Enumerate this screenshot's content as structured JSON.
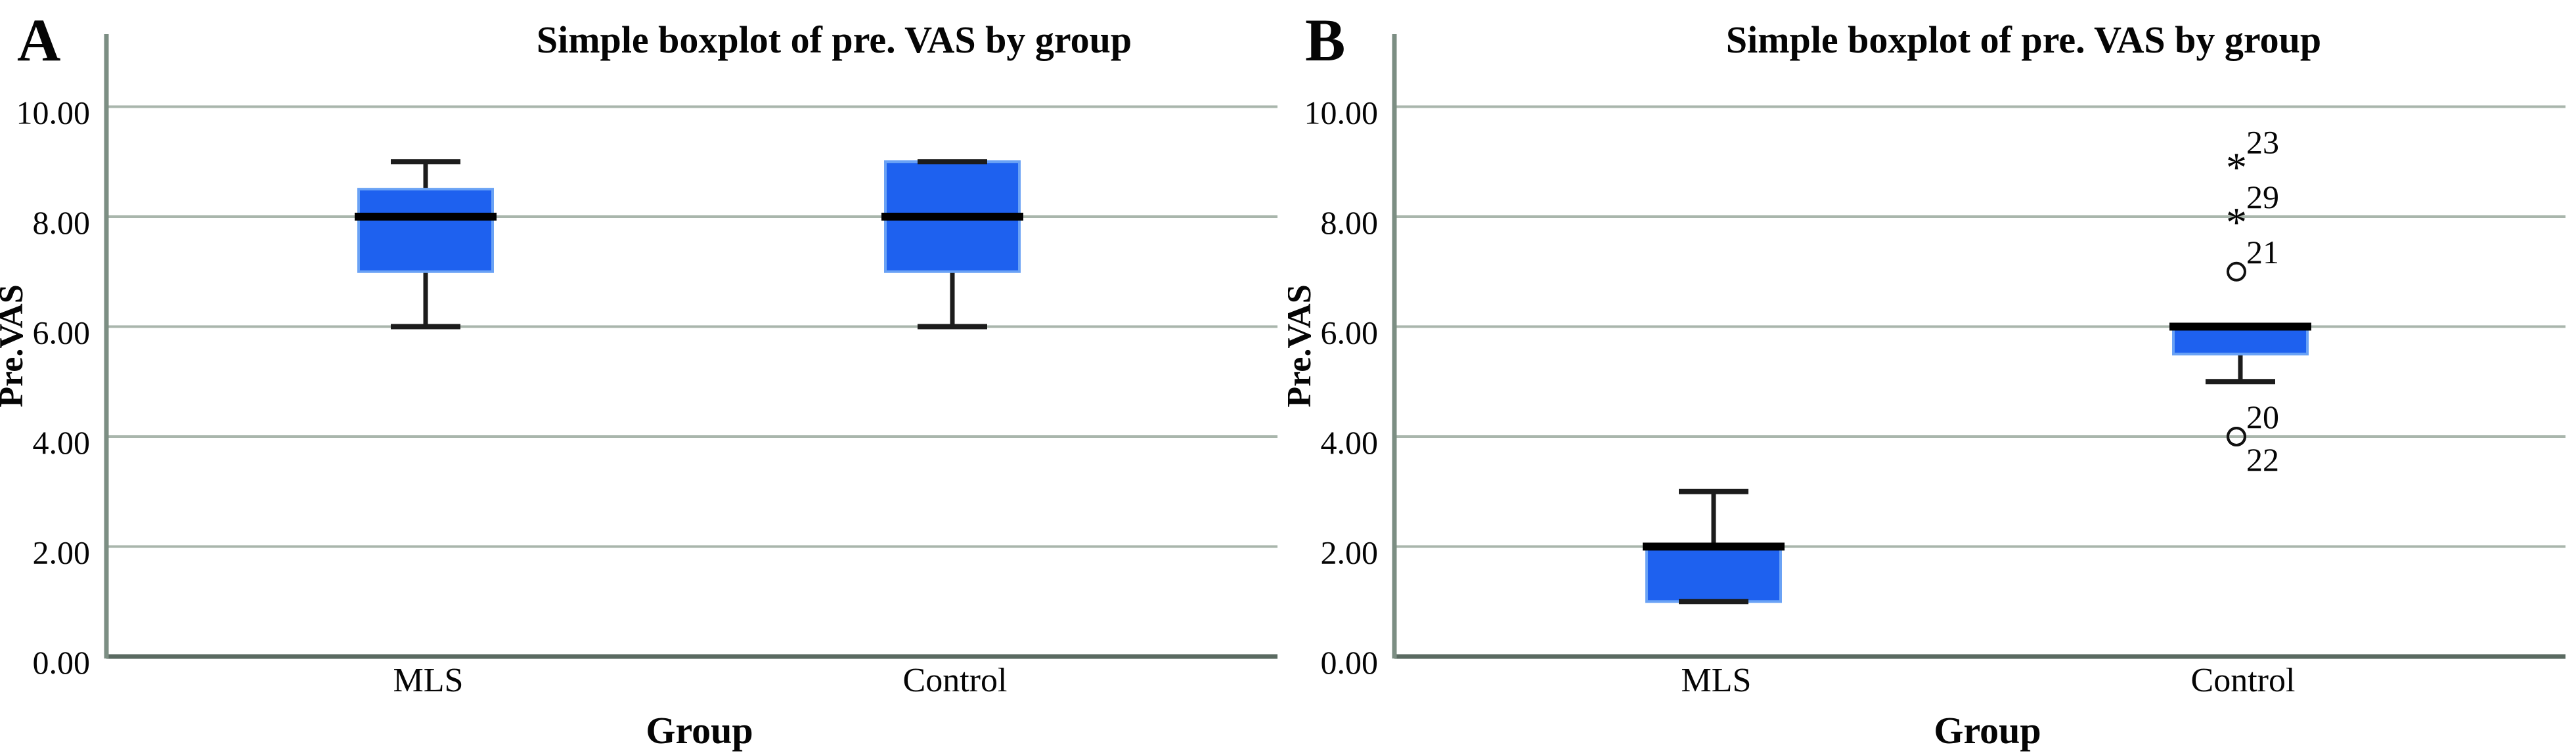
{
  "page": {
    "background": "#ffffff"
  },
  "chart_data": [
    {
      "type": "boxplot",
      "panel_label": "A",
      "title": "Simple boxplot of pre. VAS by group",
      "xlabel": "Group",
      "ylabel": "Pre.VAS",
      "categories": [
        "MLS",
        "Control"
      ],
      "ylim": [
        0,
        11.3
      ],
      "yticks": [
        0,
        2,
        4,
        6,
        8,
        10
      ],
      "ytick_labels": [
        "0.00",
        "2.00",
        "4.00",
        "6.00",
        "8.00",
        "10.00"
      ],
      "grid": "horizontal",
      "legend": "none",
      "boxes": [
        {
          "category": "MLS",
          "min": 6,
          "q1": 7,
          "median": 8,
          "q3": 8.5,
          "max": 9
        },
        {
          "category": "Control",
          "min": 6,
          "q1": 7,
          "median": 8,
          "q3": 9,
          "max": 9
        }
      ],
      "outliers": []
    },
    {
      "type": "boxplot",
      "panel_label": "B",
      "title": "Simple boxplot of pre. VAS by group",
      "xlabel": "Group",
      "ylabel": "Pre.VAS",
      "categories": [
        "MLS",
        "Control"
      ],
      "ylim": [
        0,
        11.3
      ],
      "yticks": [
        0,
        2,
        4,
        6,
        8,
        10
      ],
      "ytick_labels": [
        "0.00",
        "2.00",
        "4.00",
        "6.00",
        "8.00",
        "10.00"
      ],
      "grid": "horizontal",
      "legend": "none",
      "boxes": [
        {
          "category": "MLS",
          "min": 1,
          "q1": 1,
          "median": 2,
          "q3": 2,
          "max": 3
        },
        {
          "category": "Control",
          "min": 5,
          "q1": 5.5,
          "median": 6,
          "q3": 6,
          "max": 6
        }
      ],
      "outliers": [
        {
          "category": "Control",
          "value": 9,
          "case": "23",
          "marker": "asterisk-extreme",
          "label_side": "above"
        },
        {
          "category": "Control",
          "value": 8,
          "case": "29",
          "marker": "asterisk-extreme",
          "label_side": "above"
        },
        {
          "category": "Control",
          "value": 7,
          "case": "21",
          "marker": "circle-mild",
          "label_side": "above"
        },
        {
          "category": "Control",
          "value": 4,
          "case": "20",
          "marker": "circle-mild",
          "label_side": "above"
        },
        {
          "category": "Control",
          "value": 4,
          "case": "22",
          "marker": "circle-mild",
          "label_side": "below"
        }
      ]
    }
  ],
  "colors": {
    "box_fill": "#1e61ef",
    "box_edge": "#6aa2f5",
    "median": "#000000",
    "whisker": "#1c1c1c",
    "gridline": "#a9b6ac",
    "baseline": "#5a6a61",
    "axis_line": "#7c8e83",
    "text": "#050505",
    "background": "#ffffff"
  }
}
